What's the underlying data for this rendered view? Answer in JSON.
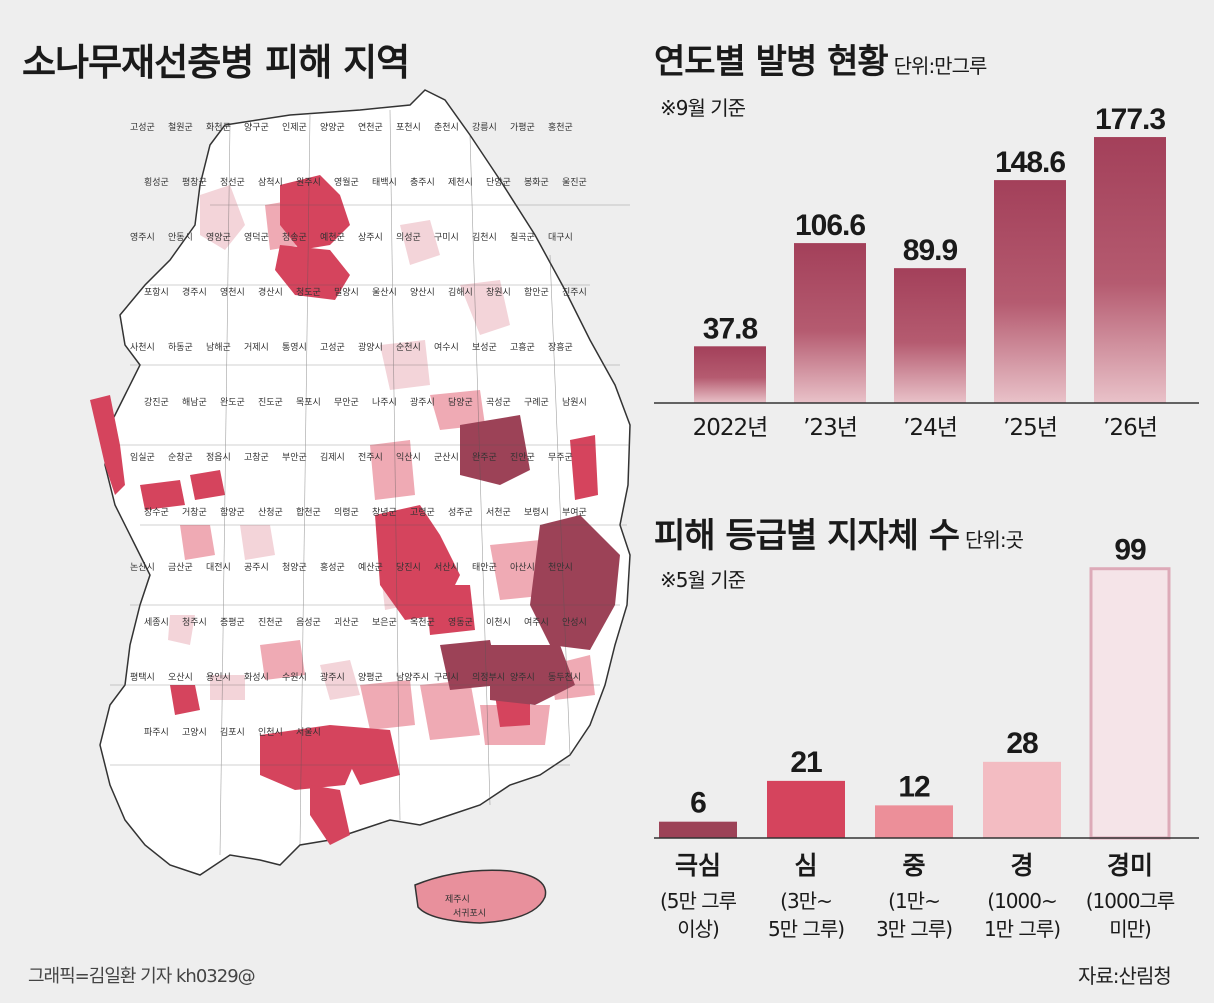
{
  "map": {
    "title": "소나무재선충병 피해 지역",
    "credit": "그래픽=김일환 기자 kh0329@",
    "labels": [
      "고성군",
      "철원군",
      "화천군",
      "양구군",
      "인제군",
      "양양군",
      "연천군",
      "포천시",
      "춘천시",
      "강릉시",
      "가평군",
      "홍천군",
      "횡성군",
      "평창군",
      "정선군",
      "삼척시",
      "원주시",
      "영월군",
      "태백시",
      "충주시",
      "제천시",
      "단양군",
      "봉화군",
      "울진군",
      "영주시",
      "안동시",
      "영양군",
      "영덕군",
      "청송군",
      "예천군",
      "상주시",
      "의성군",
      "구미시",
      "김천시",
      "칠곡군",
      "대구시",
      "포항시",
      "경주시",
      "영천시",
      "경산시",
      "청도군",
      "밀양시",
      "울산시",
      "양산시",
      "김해시",
      "창원시",
      "함안군",
      "진주시",
      "사천시",
      "하동군",
      "남해군",
      "거제시",
      "통영시",
      "고성군",
      "광양시",
      "순천시",
      "여수시",
      "보성군",
      "고흥군",
      "장흥군",
      "강진군",
      "해남군",
      "완도군",
      "진도군",
      "목포시",
      "무안군",
      "나주시",
      "광주시",
      "담양군",
      "곡성군",
      "구례군",
      "남원시",
      "임실군",
      "순창군",
      "정읍시",
      "고창군",
      "부안군",
      "김제시",
      "전주시",
      "익산시",
      "군산시",
      "완주군",
      "진안군",
      "무주군",
      "장수군",
      "거창군",
      "함양군",
      "산청군",
      "합천군",
      "의령군",
      "창녕군",
      "고령군",
      "성주군",
      "서천군",
      "보령시",
      "부여군",
      "논산시",
      "금산군",
      "대전시",
      "공주시",
      "청양군",
      "홍성군",
      "예산군",
      "당진시",
      "서산시",
      "태안군",
      "아산시",
      "천안시",
      "세종시",
      "청주시",
      "증평군",
      "진천군",
      "음성군",
      "괴산군",
      "보은군",
      "옥천군",
      "영동군",
      "이천시",
      "여주시",
      "안성시",
      "평택시",
      "오산시",
      "용인시",
      "화성시",
      "수원시",
      "광주시",
      "양평군",
      "남양주시",
      "구리시",
      "의정부시",
      "양주시",
      "동두천시",
      "파주시",
      "고양시",
      "김포시",
      "인천시",
      "서울시",
      "제주시",
      "서귀포시"
    ]
  },
  "yearly": {
    "title": "연도별 발병 현황",
    "unit": "단위:만그루",
    "note": "※9월 기준",
    "color": "#a3405a"
  },
  "grade": {
    "title": "피해 등급별 지자체 수",
    "unit": "단위:곳",
    "note": "※5월 기준"
  },
  "source": "자료:산림청",
  "chart_data": [
    {
      "type": "bar",
      "title": "연도별 발병 현황",
      "unit": "만그루",
      "categories": [
        "2022년",
        "’23년",
        "’24년",
        "’25년",
        "’26년"
      ],
      "values": [
        37.8,
        106.6,
        89.9,
        148.6,
        177.3
      ],
      "value_labels": [
        "37.8",
        "106.6",
        "89.9",
        "148.6",
        "177.3"
      ]
    },
    {
      "type": "bar",
      "title": "피해 등급별 지자체 수",
      "unit": "곳",
      "categories": [
        "극심",
        "심",
        "중",
        "경",
        "경미"
      ],
      "category_notes": [
        [
          "(5만 그루",
          "이상)"
        ],
        [
          "(3만~",
          "5만 그루)"
        ],
        [
          "(1만~",
          "3만 그루)"
        ],
        [
          "(1000~",
          "1만 그루)"
        ],
        [
          "(1000그루",
          "미만)"
        ]
      ],
      "values": [
        6,
        21,
        12,
        28,
        99
      ],
      "value_labels": [
        "6",
        "21",
        "12",
        "28",
        "99"
      ],
      "colors": [
        "#9c4257",
        "#d5445d",
        "#ec8f99",
        "#f3bcc2",
        "#f5e4e8"
      ],
      "border_colors": [
        "#9c4257",
        "#d5445d",
        "#ec8f99",
        "#f3bcc2",
        "#ddaab8"
      ]
    }
  ]
}
